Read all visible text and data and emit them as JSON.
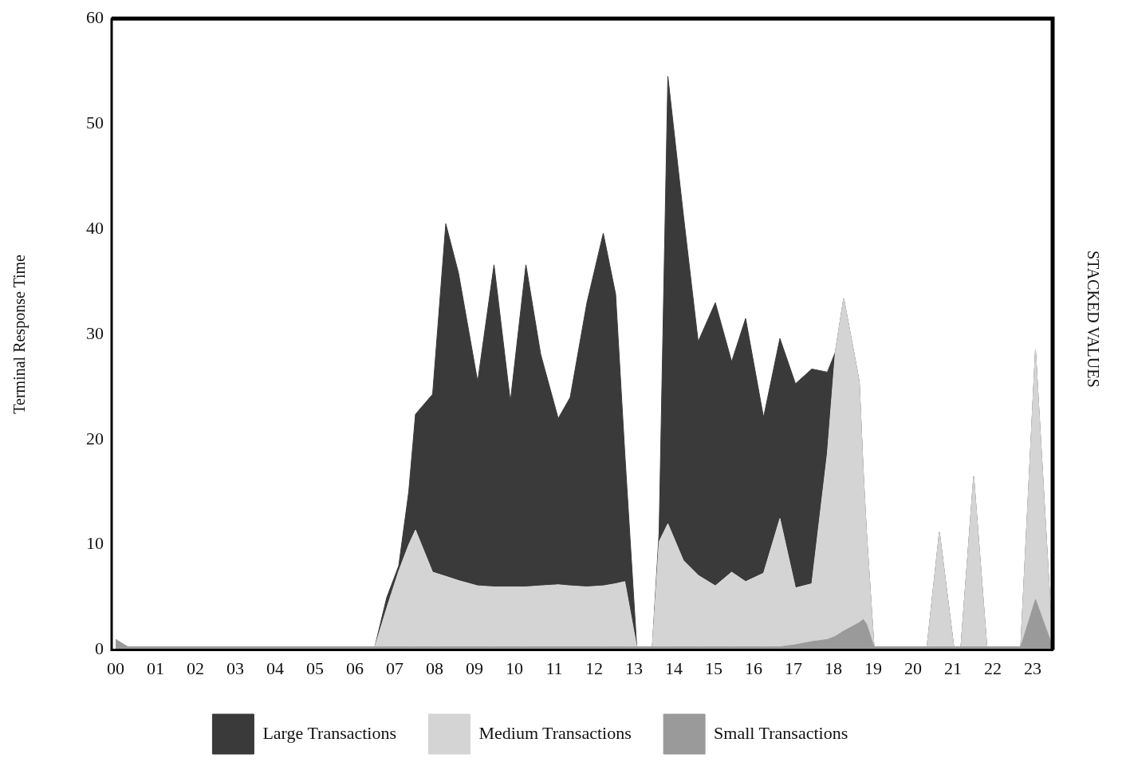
{
  "chart_data": {
    "type": "area",
    "stacked": true,
    "ylabel": "Terminal Response Time",
    "annotations": [
      "STACKED VALUES"
    ],
    "x": [
      0,
      0.3,
      6.4,
      6.5,
      6.8,
      7.1,
      7.35,
      7.52,
      7.95,
      8.28,
      8.6,
      9.08,
      9.49,
      9.9,
      10.29,
      10.66,
      11.1,
      11.4,
      11.82,
      12.23,
      12.54,
      12.77,
      13.07,
      13.46,
      13.63,
      13.85,
      14.24,
      14.61,
      15.04,
      15.45,
      15.8,
      16.25,
      16.66,
      17.05,
      17.46,
      17.85,
      18.05,
      18.26,
      18.65,
      18.75,
      18.83,
      19.02,
      20.35,
      20.66,
      21.02,
      21.2,
      21.52,
      21.85,
      22.7,
      23.07,
      23.5
    ],
    "series": [
      {
        "name": "Small Transactions",
        "color": "#9a9a9a",
        "values": [
          1,
          0.3,
          0.3,
          0.3,
          0.3,
          0.3,
          0.3,
          0.3,
          0.3,
          0.3,
          0.3,
          0.3,
          0.3,
          0.3,
          0.3,
          0.3,
          0.3,
          0.3,
          0.3,
          0.3,
          0.3,
          0.3,
          0.3,
          0.3,
          0.3,
          0.3,
          0.3,
          0.3,
          0.3,
          0.3,
          0.3,
          0.3,
          0.3,
          0.5,
          0.8,
          1,
          1.3,
          1.8,
          2.6,
          2.9,
          2.5,
          0.3,
          0.3,
          0.3,
          0.3,
          0.3,
          0.3,
          0.3,
          0.3,
          4.8,
          0.3
        ]
      },
      {
        "name": "Medium Transactions",
        "color": "#d4d4d4",
        "values": [
          0,
          0,
          0,
          0,
          3.7,
          7.2,
          9.7,
          11.1,
          7.1,
          6.7,
          6.3,
          5.8,
          5.7,
          5.7,
          5.7,
          5.8,
          5.9,
          5.8,
          5.7,
          5.8,
          6,
          6.2,
          0,
          0,
          10,
          11.7,
          8.2,
          6.8,
          5.8,
          7.1,
          6.2,
          7,
          12.2,
          5.4,
          5.5,
          17.7,
          27,
          31.6,
          22.9,
          14,
          8.7,
          0,
          0,
          10.9,
          0,
          0,
          16.2,
          0,
          0,
          23.7,
          0
        ]
      },
      {
        "name": "Large Transactions",
        "color": "#3a3a3a",
        "values": [
          0,
          0,
          0,
          0,
          1,
          0.5,
          5,
          11,
          16.9,
          33.5,
          29.2,
          19.4,
          30.6,
          17.6,
          30.6,
          22,
          15.8,
          17.9,
          27,
          33.5,
          27.5,
          12.2,
          0,
          0,
          0.9,
          42.5,
          32.8,
          22.2,
          26.9,
          20,
          25,
          14.8,
          17.1,
          19.4,
          20.4,
          7.7,
          0,
          0,
          0,
          0,
          0,
          0,
          0,
          0,
          0,
          0,
          0,
          0,
          0,
          0,
          0
        ]
      }
    ],
    "xlim": [
      -0.1,
      23.5
    ],
    "xticks": [
      {
        "value": 0,
        "label": "00"
      },
      {
        "value": 1,
        "label": "01"
      },
      {
        "value": 2,
        "label": "02"
      },
      {
        "value": 3,
        "label": "03"
      },
      {
        "value": 4,
        "label": "04"
      },
      {
        "value": 5,
        "label": "05"
      },
      {
        "value": 6,
        "label": "06"
      },
      {
        "value": 7,
        "label": "07"
      },
      {
        "value": 8,
        "label": "08"
      },
      {
        "value": 9,
        "label": "09"
      },
      {
        "value": 10,
        "label": "10"
      },
      {
        "value": 11,
        "label": "11"
      },
      {
        "value": 12,
        "label": "12"
      },
      {
        "value": 13,
        "label": "13"
      },
      {
        "value": 14,
        "label": "14"
      },
      {
        "value": 15,
        "label": "15"
      },
      {
        "value": 16,
        "label": "16"
      },
      {
        "value": 17,
        "label": "17"
      },
      {
        "value": 18,
        "label": "18"
      },
      {
        "value": 19,
        "label": "19"
      },
      {
        "value": 20,
        "label": "20"
      },
      {
        "value": 21,
        "label": "21"
      },
      {
        "value": 22,
        "label": "22"
      },
      {
        "value": 23,
        "label": "23"
      }
    ],
    "ylim": [
      0,
      60
    ],
    "yticks": [
      0,
      10,
      20,
      30,
      40,
      50,
      60
    ],
    "grid": false,
    "legend": "bottom"
  }
}
